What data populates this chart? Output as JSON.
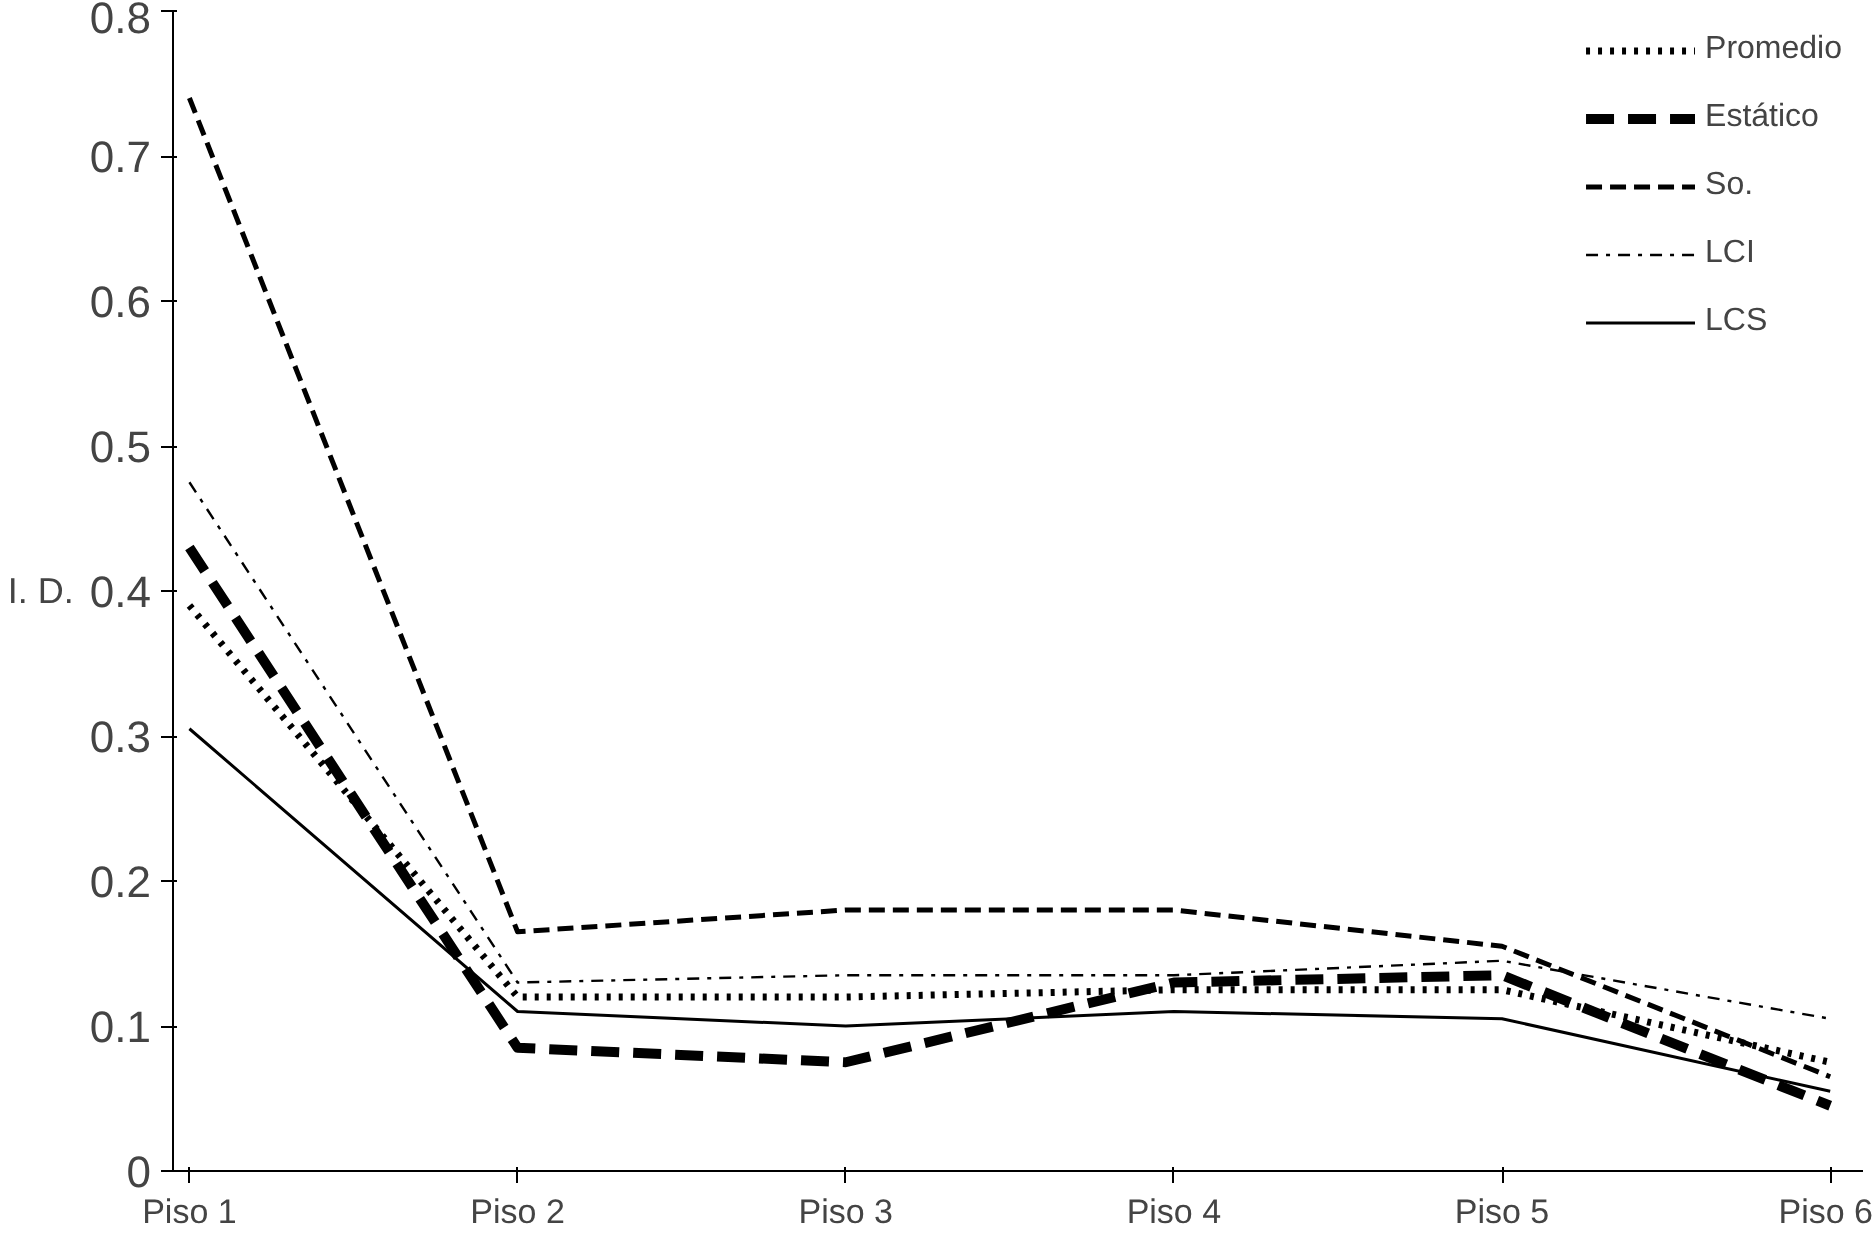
{
  "chart_data": {
    "type": "line",
    "ylabel": "I. D.",
    "categories": [
      "Piso 1",
      "Piso 2",
      "Piso 3",
      "Piso 4",
      "Piso 5",
      "Piso 6"
    ],
    "series": [
      {
        "name": "Promedio",
        "color": "#000000",
        "line_style": "dotted",
        "values": [
          0.39,
          0.12,
          0.12,
          0.125,
          0.125,
          0.075
        ]
      },
      {
        "name": "Estático",
        "color": "#000000",
        "line_style": "bold dashed",
        "values": [
          0.43,
          0.085,
          0.075,
          0.13,
          0.135,
          0.045
        ]
      },
      {
        "name": "So.",
        "color": "#000000",
        "line_style": "dashed",
        "values": [
          0.74,
          0.165,
          0.18,
          0.18,
          0.155,
          0.065
        ]
      },
      {
        "name": "LCI",
        "color": "#000000",
        "line_style": "dashdot",
        "values": [
          0.475,
          0.13,
          0.135,
          0.135,
          0.145,
          0.105
        ]
      },
      {
        "name": "LCS",
        "color": "#000000",
        "line_style": "solid",
        "values": [
          0.305,
          0.11,
          0.1,
          0.11,
          0.105,
          0.055
        ]
      }
    ],
    "ylim": [
      0,
      0.8
    ],
    "yticks": [
      0,
      0.1,
      0.2,
      0.3,
      0.4,
      0.5,
      0.6,
      0.7,
      0.8
    ],
    "grid": false,
    "legend": "top right",
    "marker": "none"
  }
}
